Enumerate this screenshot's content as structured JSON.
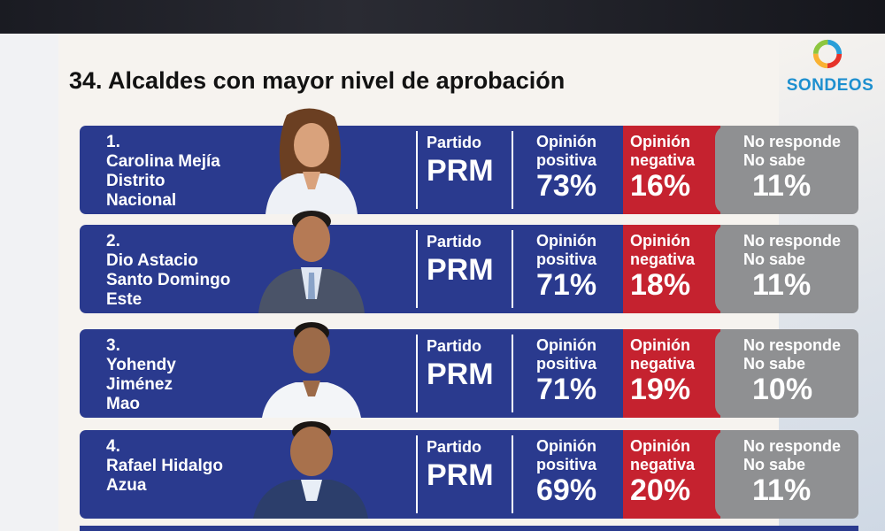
{
  "title": "34. Alcaldes con mayor nivel de aprobación",
  "logo": {
    "text": "SONDEOS",
    "colors": [
      "#e6332a",
      "#f9b233",
      "#8dc63f",
      "#2a9fd8"
    ]
  },
  "labels": {
    "party": "Partido",
    "positive": [
      "Opinión",
      "positiva"
    ],
    "negative": [
      "Opinión",
      "negativa"
    ],
    "no_answer": [
      "No responde",
      "No sabe"
    ]
  },
  "colors": {
    "blue": "#2a3a8e",
    "red": "#c5222f",
    "gray": "#8f9092"
  },
  "rows": [
    {
      "rank": "1.",
      "name_lines": [
        "Carolina Mejía",
        "Distrito",
        "Nacional"
      ],
      "party": "PRM",
      "positive": "73%",
      "negative": "16%",
      "no_answer": "11%"
    },
    {
      "rank": "2.",
      "name_lines": [
        "Dio Astacio",
        "Santo Domingo",
        "Este"
      ],
      "party": "PRM",
      "positive": "71%",
      "negative": "18%",
      "no_answer": "11%"
    },
    {
      "rank": "3.",
      "name_lines": [
        "Yohendy",
        "Jiménez",
        "Mao"
      ],
      "party": "PRM",
      "positive": "71%",
      "negative": "19%",
      "no_answer": "10%"
    },
    {
      "rank": "4.",
      "name_lines": [
        "Rafael Hidalgo",
        "Azua"
      ],
      "party": "PRM",
      "positive": "69%",
      "negative": "20%",
      "no_answer": "11%"
    }
  ]
}
